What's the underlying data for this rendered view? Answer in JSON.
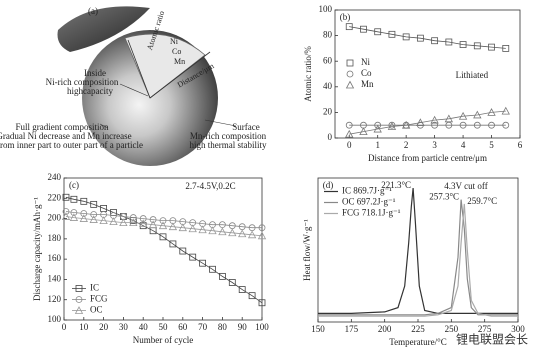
{
  "diagram": {
    "label": "(a)",
    "inside": [
      "Inside",
      "Ni-rich composition",
      "highcapacity"
    ],
    "full": [
      "Full gradient composition",
      "Gradual Ni decrease and Mn increase",
      "from inner part to outer part of a particle"
    ],
    "surface": [
      "Surface",
      "Mn-rich composition",
      "high thermal stability"
    ],
    "axis_y": "Atomic ratio",
    "axis_x": "Distance/μm",
    "elements": [
      "Ni",
      "Co",
      "Mn"
    ]
  },
  "chart_data": [
    {
      "type": "line",
      "label": "(b)",
      "xlabel": "Distance from particle centre/μm",
      "ylabel": "Atomic ratio/%",
      "annotation": "Lithiated",
      "x": [
        0,
        0.5,
        1,
        1.5,
        2,
        2.5,
        3,
        3.5,
        4,
        4.5,
        5,
        5.5
      ],
      "xlim": [
        -0.5,
        6
      ],
      "xticks": [
        0,
        1,
        2,
        3,
        4,
        5,
        6
      ],
      "ylim": [
        0,
        100
      ],
      "yticks": [
        0,
        20,
        40,
        60,
        80,
        100
      ],
      "legend": "center left",
      "series": [
        {
          "name": "Ni",
          "color": "#555555",
          "marker": "square",
          "values": [
            87,
            85,
            83,
            81,
            79,
            78,
            76,
            75,
            73,
            72,
            71,
            70
          ]
        },
        {
          "name": "Co",
          "color": "#777777",
          "marker": "circle",
          "values": [
            10,
            10,
            10,
            10,
            10,
            10,
            10,
            10,
            10,
            10,
            10,
            10
          ]
        },
        {
          "name": "Mn",
          "color": "#777777",
          "marker": "triangle",
          "values": [
            3,
            5,
            7,
            9,
            10,
            12,
            14,
            15,
            17,
            18,
            20,
            21
          ]
        }
      ]
    },
    {
      "type": "line",
      "label": "(c)",
      "xlabel": "Number of cycle",
      "ylabel": "Discharge capacity/mAh·g⁻¹",
      "annotation": "2.7-4.5V,0.2C",
      "x": [
        1,
        5,
        10,
        15,
        20,
        25,
        30,
        35,
        40,
        45,
        50,
        55,
        60,
        65,
        70,
        75,
        80,
        85,
        90,
        95,
        100
      ],
      "xlim": [
        0,
        100
      ],
      "xticks": [
        0,
        10,
        20,
        30,
        40,
        50,
        60,
        70,
        80,
        90,
        100
      ],
      "ylim": [
        100,
        240
      ],
      "yticks": [
        100,
        120,
        140,
        160,
        180,
        200,
        220,
        240
      ],
      "legend": "lower left",
      "series": [
        {
          "name": "IC",
          "color": "#444444",
          "marker": "square",
          "values": [
            221,
            219,
            217,
            214,
            210,
            206,
            202,
            198,
            193,
            188,
            182,
            175,
            168,
            162,
            156,
            150,
            143,
            137,
            130,
            124,
            117
          ]
        },
        {
          "name": "FCG",
          "color": "#888888",
          "marker": "circle",
          "values": [
            207,
            206,
            205,
            204,
            204,
            203,
            202,
            201,
            200,
            199,
            198,
            198,
            197,
            196,
            195,
            194,
            194,
            193,
            192,
            191,
            191
          ]
        },
        {
          "name": "OC",
          "color": "#999999",
          "marker": "triangle",
          "values": [
            202,
            201,
            200,
            199,
            198,
            197,
            196,
            196,
            195,
            194,
            193,
            192,
            191,
            190,
            189,
            188,
            187,
            186,
            185,
            184,
            183
          ]
        }
      ]
    },
    {
      "type": "line",
      "label": "(d)",
      "xlabel": "Temperature/°C",
      "ylabel": "Heat flow/W·g⁻¹",
      "annotation": "4.3V cut off",
      "peak_labels": [
        "221.3°C",
        "257.3°C",
        "259.7°C"
      ],
      "x": [
        150,
        175,
        200,
        210,
        215,
        218,
        220,
        221.3,
        223,
        226,
        230,
        240,
        250,
        255,
        257.3,
        259.7,
        262,
        265,
        270,
        280,
        300
      ],
      "xlim": [
        150,
        300
      ],
      "xticks": [
        150,
        175,
        200,
        225,
        250,
        275,
        300
      ],
      "ylim": [
        0,
        10
      ],
      "legend": "upper left",
      "series": [
        {
          "name": "IC 869.7J·g⁻¹",
          "color": "#333333",
          "values": [
            0.6,
            0.6,
            0.7,
            1.0,
            2.5,
            5.5,
            8.0,
            9.3,
            7.0,
            2.5,
            0.8,
            0.6,
            0.6,
            0.6,
            0.6,
            0.6,
            0.6,
            0.6,
            0.6,
            0.6,
            0.6
          ]
        },
        {
          "name": "OC 697.2J·g⁻¹",
          "color": "#888888",
          "values": [
            0.5,
            0.5,
            0.5,
            0.5,
            0.5,
            0.5,
            0.5,
            0.5,
            0.5,
            0.5,
            0.5,
            0.6,
            1.0,
            4.5,
            8.5,
            6.5,
            3.0,
            1.0,
            0.5,
            0.5,
            0.5
          ]
        },
        {
          "name": "FCG 718.1J·g⁻¹",
          "color": "#aaaaaa",
          "values": [
            0.4,
            0.4,
            0.4,
            0.4,
            0.4,
            0.4,
            0.4,
            0.4,
            0.4,
            0.4,
            0.4,
            0.5,
            0.8,
            2.5,
            5.5,
            8.2,
            5.0,
            1.5,
            0.6,
            0.4,
            0.4
          ]
        }
      ]
    }
  ],
  "watermark": "锂电联盟会长"
}
